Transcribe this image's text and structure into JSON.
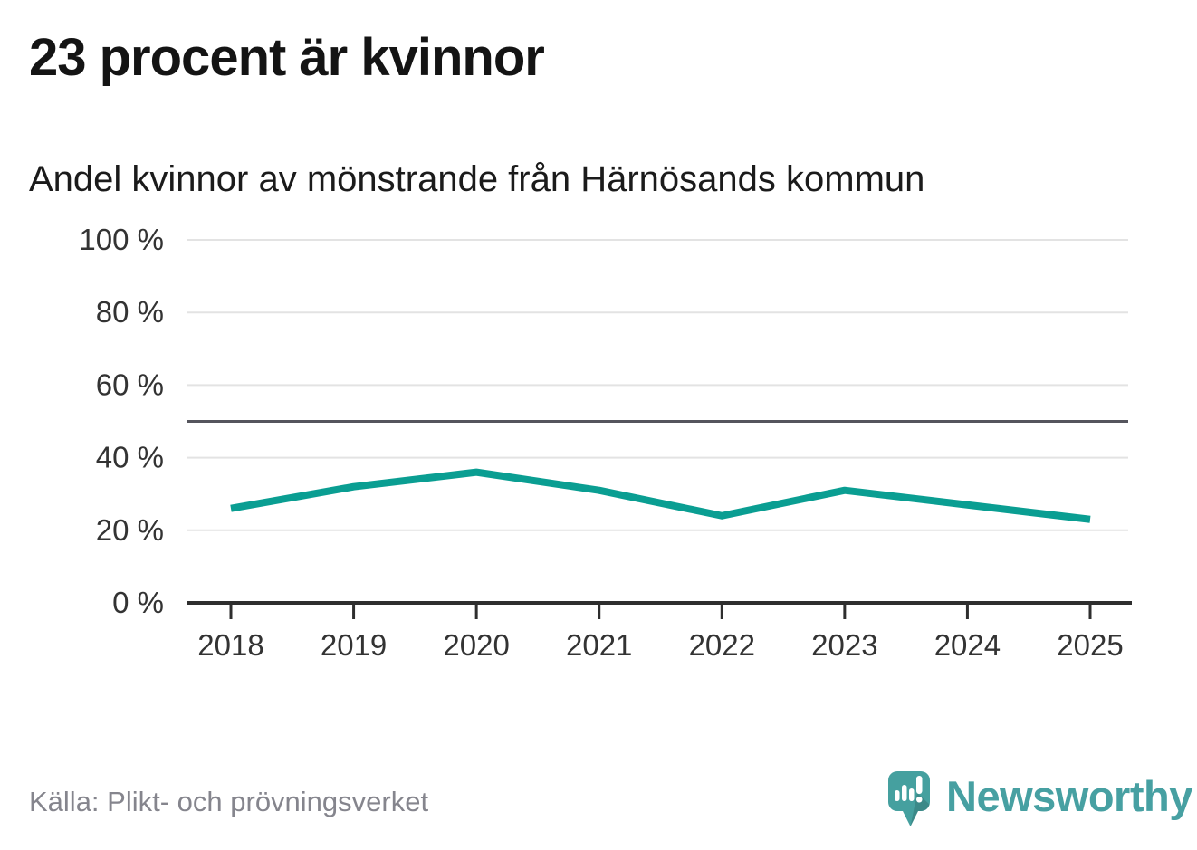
{
  "header": {
    "title": "23 procent är kvinnor",
    "subtitle": "Andel kvinnor av mönstrande från Härnösands kommun"
  },
  "chart_data": {
    "type": "line",
    "title": "23 procent är kvinnor",
    "subtitle": "Andel kvinnor av mönstrande från Härnösands kommun",
    "categories": [
      "2018",
      "2019",
      "2020",
      "2021",
      "2022",
      "2023",
      "2024",
      "2025"
    ],
    "series": [
      {
        "name": "Andel kvinnor av mönstrande",
        "values": [
          26,
          32,
          36,
          31,
          24,
          31,
          27,
          23
        ]
      }
    ],
    "unit": "%",
    "xlabel": "",
    "ylabel": "",
    "ylim": [
      0,
      100
    ],
    "yticks": [
      0,
      20,
      40,
      60,
      80,
      100
    ],
    "ytick_labels": [
      "0 %",
      "20 %",
      "40 %",
      "60 %",
      "80 %",
      "100 %"
    ],
    "reference_line": 50,
    "grid": true,
    "legend_position": "none"
  },
  "colors": {
    "line": "#0a9e92",
    "grid": "#e3e3e3",
    "reference": "#55555d",
    "axis": "#2e2e2e",
    "tick_label": "#333333",
    "brand_teal": "#45a09f",
    "wordmark": "#47a0a2",
    "source_text": "#85858d"
  },
  "footer": {
    "source": "Källa: Plikt- och prövningsverket",
    "brand": "Newsworthy"
  }
}
